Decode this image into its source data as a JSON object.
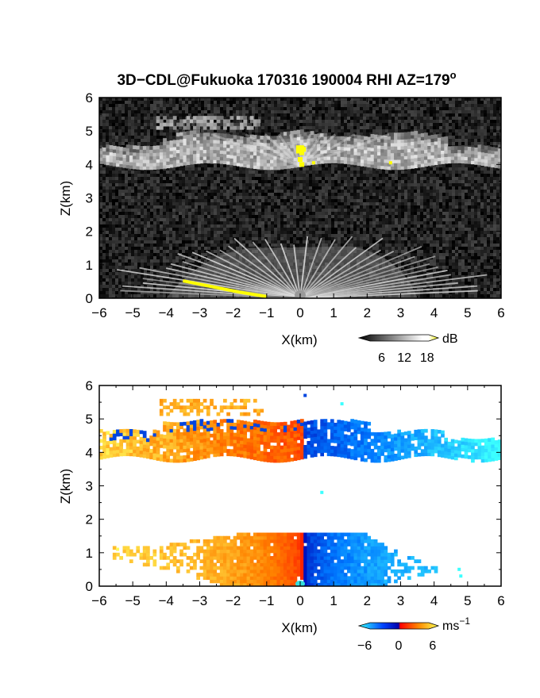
{
  "title": {
    "main": "3D−CDL@Fukuoka 170316 190004 RHI AZ=179",
    "degree": "o"
  },
  "chart_data": [
    {
      "type": "heatmap",
      "quantity": "reflectivity",
      "xlabel": "X(km)",
      "ylabel": "Z(km)",
      "xlim": [
        -6,
        6
      ],
      "ylim": [
        0,
        6
      ],
      "xticks": [
        "−6",
        "−5",
        "−4",
        "−3",
        "−2",
        "−1",
        "0",
        "1",
        "2",
        "3",
        "4",
        "5",
        "6"
      ],
      "yticks": [
        "0",
        "1",
        "2",
        "3",
        "4",
        "5",
        "6"
      ],
      "grid": false,
      "colorbar": {
        "unit": "dB",
        "ticks": [
          "6",
          "12",
          "18"
        ],
        "range": [
          0,
          21
        ],
        "colormap": "grayscale-to-yellow"
      },
      "features": [
        {
          "label": "upper cloud layer",
          "x": [
            -6,
            6
          ],
          "z": [
            3.9,
            4.9
          ],
          "level": "moderate"
        },
        {
          "label": "upper cloud top patch",
          "x": [
            -4.3,
            -1.2
          ],
          "z": [
            5.0,
            5.4
          ],
          "level": "moderate"
        },
        {
          "label": "strong echo",
          "x": [
            -0.1,
            0.2
          ],
          "z": [
            3.9,
            4.6
          ],
          "level": "high"
        },
        {
          "label": "low-level fan",
          "x": [
            -4,
            3.5
          ],
          "z": [
            0,
            1.6
          ],
          "level": "moderate"
        },
        {
          "label": "ground clutter",
          "x": [
            -3.5,
            -1
          ],
          "z": [
            0,
            0.5
          ],
          "level": "high"
        }
      ]
    },
    {
      "type": "heatmap",
      "quantity": "doppler velocity",
      "xlabel": "X(km)",
      "ylabel": "Z(km)",
      "xlim": [
        -6,
        6
      ],
      "ylim": [
        0,
        6
      ],
      "xticks": [
        "−6",
        "−5",
        "−4",
        "−3",
        "−2",
        "−1",
        "0",
        "1",
        "2",
        "3",
        "4",
        "5",
        "6"
      ],
      "yticks": [
        "0",
        "1",
        "2",
        "3",
        "4",
        "5",
        "6"
      ],
      "grid": false,
      "colorbar": {
        "unit": "ms",
        "unit_sup": "−1",
        "ticks": [
          "−6",
          "0",
          "6"
        ],
        "range": [
          -7,
          7
        ],
        "colormap": "cyan-blue-red-yellow"
      },
      "features": [
        {
          "label": "upper layer, receding",
          "x": [
            -6,
            0
          ],
          "z": [
            3.8,
            5.5
          ],
          "velocity": 4
        },
        {
          "label": "upper layer, approaching",
          "x": [
            0,
            6
          ],
          "z": [
            3.7,
            4.9
          ],
          "velocity": -4
        },
        {
          "label": "lower fan, receding",
          "x": [
            -5.5,
            0
          ],
          "z": [
            0,
            1.6
          ],
          "velocity": 5
        },
        {
          "label": "lower fan, approaching",
          "x": [
            0,
            4.5
          ],
          "z": [
            0,
            1.6
          ],
          "velocity": -4
        }
      ]
    }
  ]
}
